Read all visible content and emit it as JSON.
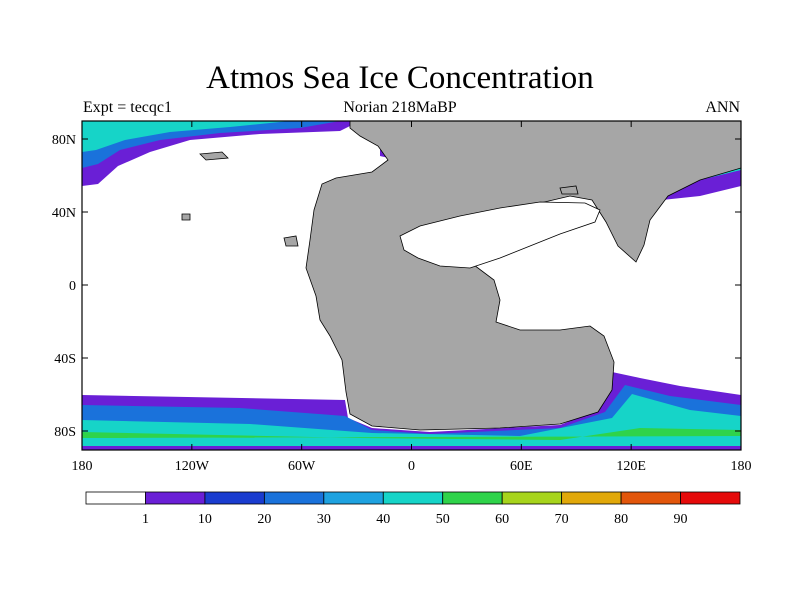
{
  "title": "Atmos Sea Ice Concentration",
  "subtitle_left": "Expt = tecqc1",
  "subtitle_center": "Norian 218MaBP",
  "subtitle_right": "ANN",
  "lat_labels": [
    "80N",
    "40N",
    "0",
    "40S",
    "80S"
  ],
  "lon_labels": [
    "180",
    "120W",
    "60W",
    "0",
    "60E",
    "120E",
    "180"
  ],
  "colorbar": {
    "colors": [
      "#ffffff",
      "#6a1fd6",
      "#1a3ccf",
      "#1a72db",
      "#1ea2e0",
      "#16d4c8",
      "#2fd34a",
      "#a7d41c",
      "#e1a80a",
      "#e2560b",
      "#e50a0a"
    ],
    "labels": [
      "1",
      "10",
      "20",
      "30",
      "40",
      "50",
      "60",
      "70",
      "80",
      "90"
    ]
  },
  "colors": {
    "land": "#a6a6a6",
    "outline": "#000000",
    "ice_low": "#6a1fd6",
    "ice_mid": "#1a72db",
    "ice_high": "#16d4c8",
    "ice_peak": "#2fd34a"
  }
}
